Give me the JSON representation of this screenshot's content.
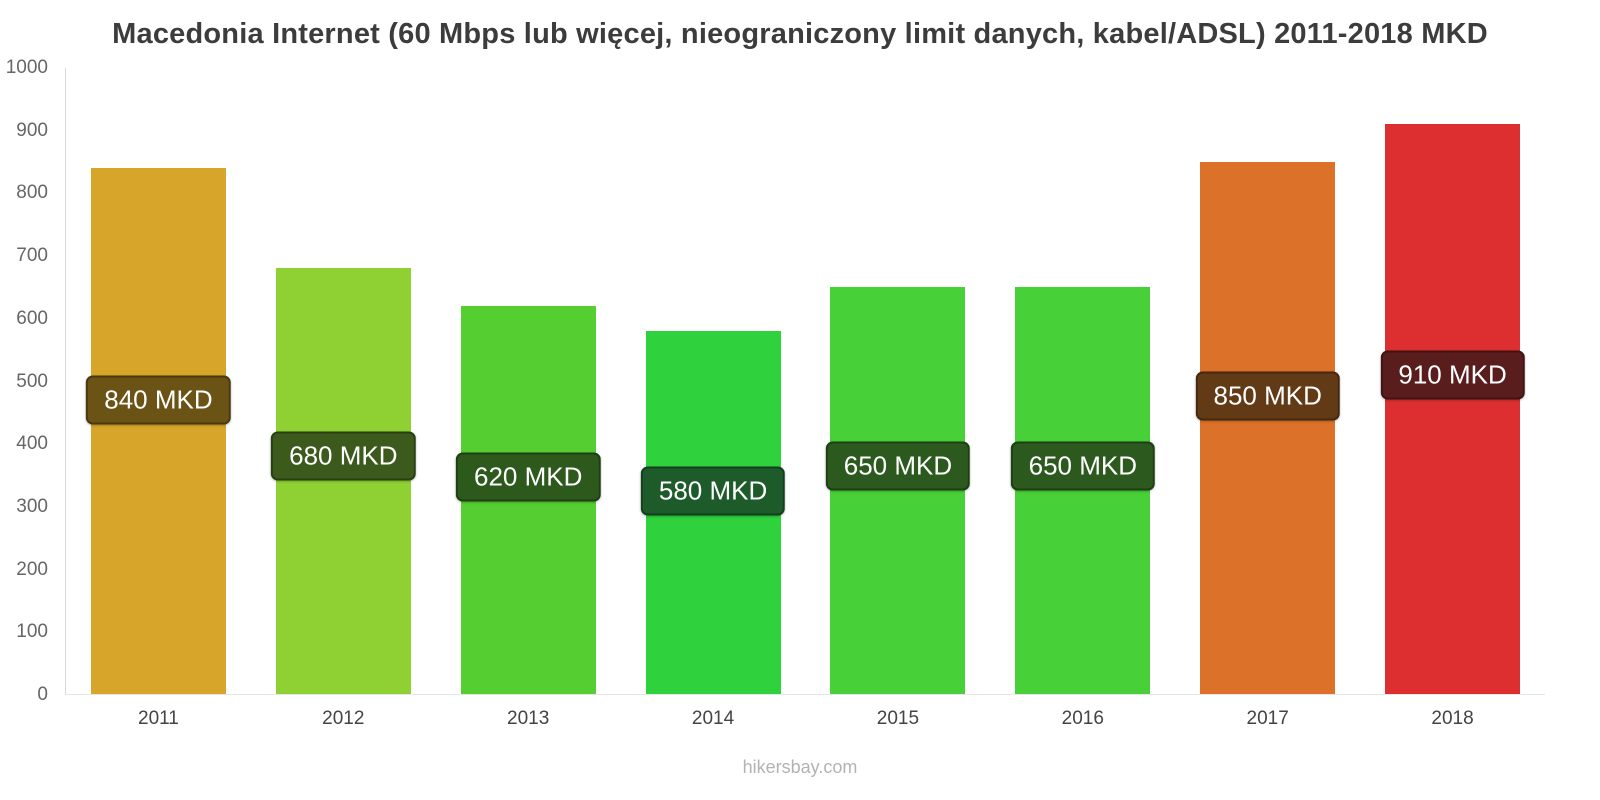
{
  "title": "Macedonia Internet (60 Mbps lub więcej, nieograniczony limit danych, kabel/ADSL) 2011-2018 MKD",
  "footer": "hikersbay.com",
  "chart_data": {
    "type": "bar",
    "title": "Macedonia Internet (60 Mbps lub więcej, nieograniczony limit danych, kabel/ADSL) 2011-2018 MKD",
    "xlabel": "",
    "ylabel": "",
    "ylim": [
      0,
      1000
    ],
    "ytick_step": 100,
    "grid": false,
    "legend": false,
    "currency": "MKD",
    "categories": [
      "2011",
      "2012",
      "2013",
      "2014",
      "2015",
      "2016",
      "2017",
      "2018"
    ],
    "values": [
      840,
      680,
      620,
      580,
      650,
      650,
      850,
      910
    ],
    "value_labels": [
      "840 MKD",
      "680 MKD",
      "620 MKD",
      "580 MKD",
      "650 MKD",
      "650 MKD",
      "850 MKD",
      "910 MKD"
    ],
    "bar_colors": [
      "#D6A52A",
      "#8FD133",
      "#55CE31",
      "#2FD13C",
      "#47D038",
      "#47D038",
      "#DC7229",
      "#DD2F2F"
    ],
    "badge_colors": [
      "#6B5215",
      "#3C5A1B",
      "#2E591C",
      "#1E5B2A",
      "#2C5A1E",
      "#2C5A1E",
      "#633A16",
      "#5A1D1D"
    ],
    "badge_center_fraction": 0.56
  }
}
